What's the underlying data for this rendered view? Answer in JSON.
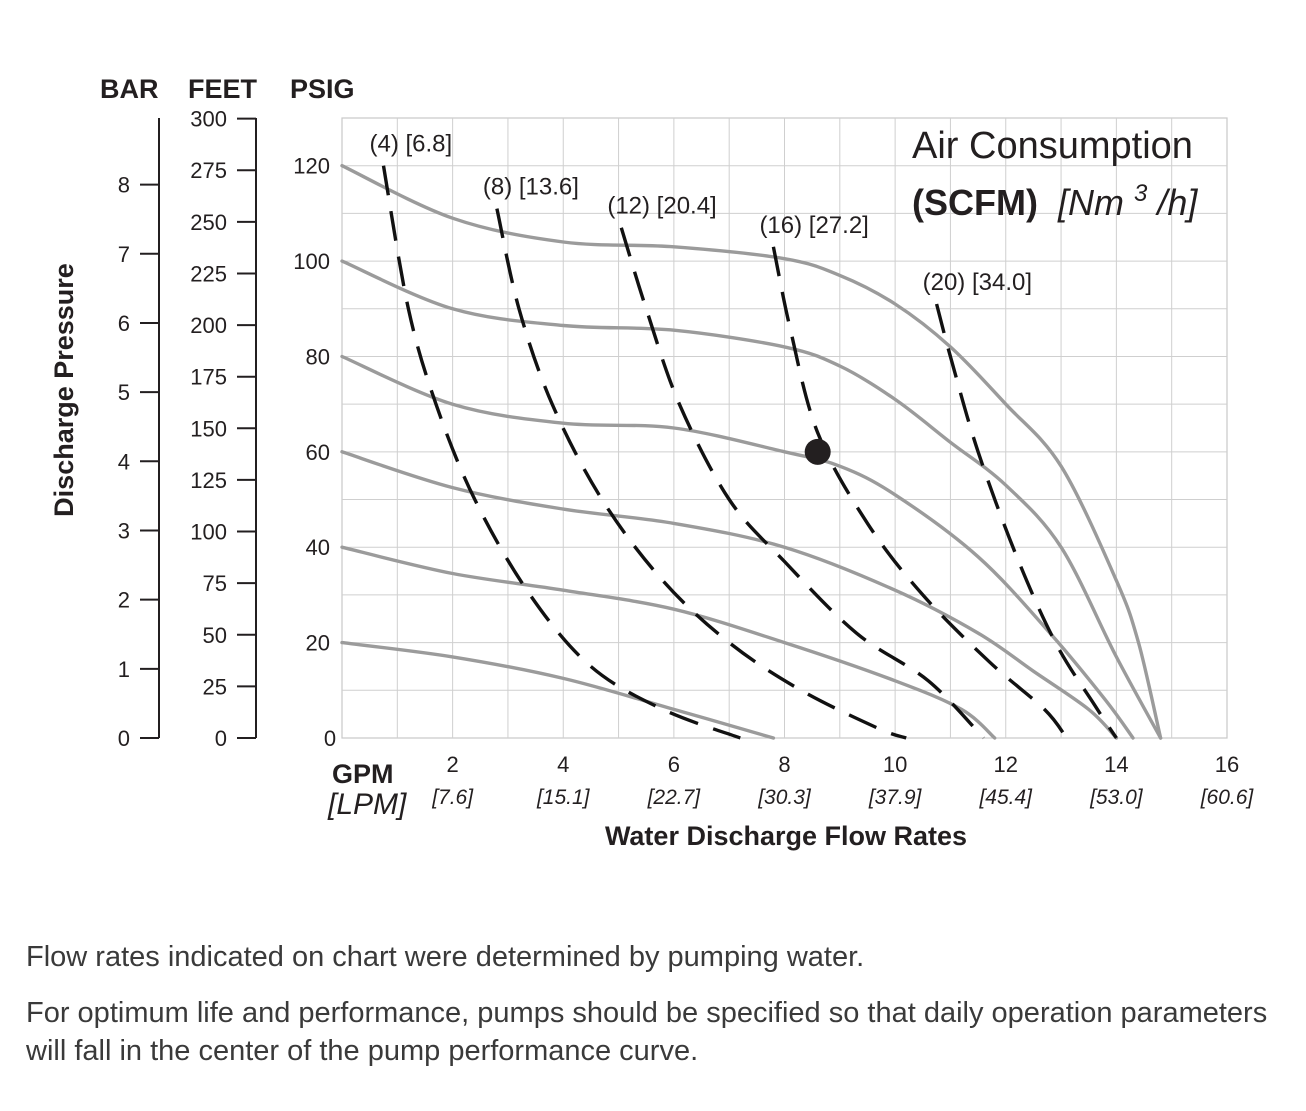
{
  "chart_data": {
    "type": "line",
    "title": {
      "line1": "Air Consumption",
      "line2_bold": "(SCFM)",
      "line2_italic_pre": "[Nm",
      "line2_italic_sup": "3",
      "line2_italic_post": "/h]"
    },
    "xlabel": "Water Discharge Flow Rates",
    "x_unit_primary": "GPM",
    "x_unit_secondary": "[LPM]",
    "ylabel": "Discharge Pressure",
    "y_unit_headers": {
      "bar": "BAR",
      "feet": "FEET",
      "psig": "PSIG"
    },
    "xlim": [
      0,
      16
    ],
    "ylim_psig": [
      0,
      130
    ],
    "x_ticks": [
      {
        "gpm": 2,
        "gpm_label": "2",
        "lpm_label": "[7.6]"
      },
      {
        "gpm": 4,
        "gpm_label": "4",
        "lpm_label": "[15.1]"
      },
      {
        "gpm": 6,
        "gpm_label": "6",
        "lpm_label": "[22.7]"
      },
      {
        "gpm": 8,
        "gpm_label": "8",
        "lpm_label": "[30.3]"
      },
      {
        "gpm": 10,
        "gpm_label": "10",
        "lpm_label": "[37.9]"
      },
      {
        "gpm": 12,
        "gpm_label": "12",
        "lpm_label": "[45.4]"
      },
      {
        "gpm": 14,
        "gpm_label": "14",
        "lpm_label": "[53.0]"
      },
      {
        "gpm": 16,
        "gpm_label": "16",
        "lpm_label": "[60.6]"
      }
    ],
    "x_zero_label": "0",
    "psig_ticks": [
      0,
      20,
      40,
      60,
      80,
      100,
      120
    ],
    "feet_ticks": [
      0,
      25,
      50,
      75,
      100,
      125,
      150,
      175,
      200,
      225,
      250,
      275,
      300
    ],
    "bar_ticks": [
      0,
      1,
      2,
      3,
      4,
      5,
      6,
      7,
      8
    ],
    "grid": true,
    "series_style": {
      "pressure_curves": "#9b9b9b",
      "air_curves": "#111111"
    },
    "pressure_curves": [
      {
        "name": "20 psig",
        "points": [
          [
            0,
            20
          ],
          [
            2,
            17
          ],
          [
            4,
            12.5
          ],
          [
            6,
            6
          ],
          [
            7.8,
            0
          ]
        ]
      },
      {
        "name": "40 psig",
        "points": [
          [
            0,
            40
          ],
          [
            2,
            34.5
          ],
          [
            4,
            31
          ],
          [
            6,
            27
          ],
          [
            8,
            20
          ],
          [
            10,
            12
          ],
          [
            11.2,
            6
          ],
          [
            11.8,
            0
          ]
        ]
      },
      {
        "name": "60 psig",
        "points": [
          [
            0,
            60
          ],
          [
            2,
            52.5
          ],
          [
            4,
            48
          ],
          [
            6,
            45
          ],
          [
            8,
            40
          ],
          [
            10,
            31
          ],
          [
            11.5,
            22
          ],
          [
            12.5,
            14
          ],
          [
            13.5,
            6
          ],
          [
            14,
            0
          ]
        ]
      },
      {
        "name": "80 psig",
        "points": [
          [
            0,
            80
          ],
          [
            2,
            70
          ],
          [
            4,
            66
          ],
          [
            6,
            65
          ],
          [
            8,
            60
          ],
          [
            9,
            57
          ],
          [
            10,
            51
          ],
          [
            11.5,
            38
          ],
          [
            12.8,
            22
          ],
          [
            13.8,
            8
          ],
          [
            14.3,
            0
          ]
        ]
      },
      {
        "name": "100 psig",
        "points": [
          [
            0,
            100
          ],
          [
            2,
            90
          ],
          [
            4,
            86.5
          ],
          [
            6,
            85.5
          ],
          [
            8,
            82
          ],
          [
            9,
            78
          ],
          [
            10,
            71
          ],
          [
            11,
            62
          ],
          [
            12,
            53
          ],
          [
            13,
            40
          ],
          [
            14,
            17
          ],
          [
            14.8,
            0
          ]
        ]
      },
      {
        "name": "120 psig",
        "points": [
          [
            0,
            120
          ],
          [
            2,
            109
          ],
          [
            4,
            104
          ],
          [
            6,
            103
          ],
          [
            8,
            100.5
          ],
          [
            9,
            97
          ],
          [
            10,
            91
          ],
          [
            11,
            82
          ],
          [
            12,
            70
          ],
          [
            13,
            57
          ],
          [
            14,
            33
          ],
          [
            14.4,
            20
          ],
          [
            14.8,
            0
          ]
        ]
      }
    ],
    "air_curves": [
      {
        "label": "(4) [6.8]",
        "points": [
          [
            0.75,
            120
          ],
          [
            1.2,
            90
          ],
          [
            1.7,
            70
          ],
          [
            2.4,
            50
          ],
          [
            3.4,
            30
          ],
          [
            4.5,
            15
          ],
          [
            5.8,
            6
          ],
          [
            7.2,
            0
          ]
        ]
      },
      {
        "label": "(8) [13.6]",
        "points": [
          [
            2.8,
            111
          ],
          [
            3.2,
            90
          ],
          [
            3.8,
            70
          ],
          [
            4.7,
            50
          ],
          [
            5.8,
            33
          ],
          [
            7,
            20
          ],
          [
            8.3,
            10
          ],
          [
            9.7,
            2
          ],
          [
            10.2,
            0
          ]
        ]
      },
      {
        "label": "(12) [20.4]",
        "points": [
          [
            5.05,
            107
          ],
          [
            5.5,
            90
          ],
          [
            6.1,
            70
          ],
          [
            7,
            50
          ],
          [
            8,
            37
          ],
          [
            9.3,
            22
          ],
          [
            10.6,
            12
          ],
          [
            11.6,
            0
          ]
        ]
      },
      {
        "label": "(16) [27.2]",
        "points": [
          [
            7.8,
            103
          ],
          [
            8.1,
            86
          ],
          [
            8.6,
            64
          ],
          [
            9.5,
            45
          ],
          [
            10.5,
            30
          ],
          [
            11.7,
            16
          ],
          [
            12.7,
            6
          ],
          [
            13.1,
            0
          ]
        ]
      },
      {
        "label": "(20) [34.0]",
        "points": [
          [
            10.75,
            91
          ],
          [
            11,
            80
          ],
          [
            11.5,
            60
          ],
          [
            12.2,
            38
          ],
          [
            12.9,
            20
          ],
          [
            13.6,
            7
          ],
          [
            14,
            0
          ]
        ]
      }
    ],
    "operating_point": {
      "gpm": 8.6,
      "psig": 60
    }
  },
  "notes": [
    "Flow rates indicated on chart were determined by pumping water.",
    "For optimum life and performance, pumps should be specified so that daily operation parameters will fall in the center of the pump performance curve."
  ]
}
